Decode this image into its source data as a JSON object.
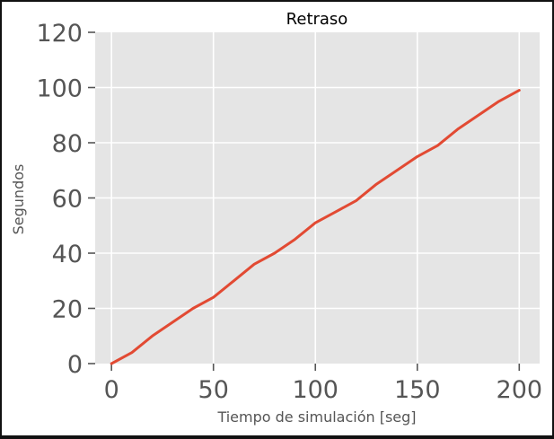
{
  "chart_data": {
    "type": "line",
    "title": "Retraso",
    "xlabel": "Tiempo de simulación [seg]",
    "ylabel": "Segundos",
    "xlim": [
      -8,
      210
    ],
    "ylim": [
      0,
      120
    ],
    "xticks": [
      0,
      50,
      100,
      150,
      200
    ],
    "xtick_labels": [
      "0",
      "50",
      "100",
      "150",
      "200"
    ],
    "yticks": [
      0,
      20,
      40,
      60,
      80,
      100,
      120
    ],
    "ytick_labels": [
      "0",
      "20",
      "40",
      "60",
      "80",
      "100",
      "120"
    ],
    "grid": true,
    "colors": {
      "line": "#e24a33",
      "plot_bg": "#e5e5e5",
      "grid": "#ffffff",
      "tick_label": "#555555"
    },
    "series": [
      {
        "x": [
          0,
          10,
          20,
          30,
          40,
          50,
          60,
          70,
          80,
          90,
          100,
          110,
          120,
          130,
          140,
          150,
          160,
          170,
          180,
          190,
          200
        ],
        "y": [
          0,
          4,
          10,
          15,
          20,
          24,
          30,
          36,
          40,
          45,
          51,
          55,
          59,
          65,
          70,
          75,
          79,
          85,
          90,
          95,
          99
        ]
      }
    ]
  }
}
